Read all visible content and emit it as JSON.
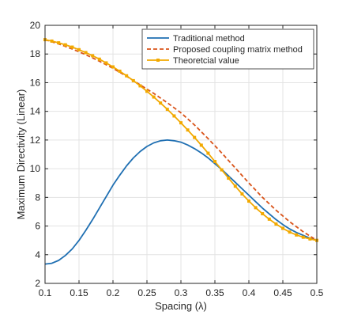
{
  "chart_data": {
    "type": "line",
    "title": "",
    "xlabel": "Spacing (λ)",
    "ylabel": "Maximum Directivity (Linear)",
    "xlim": [
      0.1,
      0.5
    ],
    "ylim": [
      2,
      20
    ],
    "x_ticks": [
      "0.1",
      "0.15",
      "0.2",
      "0.25",
      "0.3",
      "0.35",
      "0.4",
      "0.45",
      "0.5"
    ],
    "y_ticks": [
      "2",
      "4",
      "6",
      "8",
      "10",
      "12",
      "14",
      "16",
      "18",
      "20"
    ],
    "grid": true,
    "legend_position": "top-right",
    "series": [
      {
        "name": "Traditional method",
        "color": "#1f6fb2",
        "style": "solid",
        "x": [
          0.1,
          0.11,
          0.12,
          0.13,
          0.14,
          0.15,
          0.16,
          0.17,
          0.18,
          0.19,
          0.2,
          0.21,
          0.22,
          0.23,
          0.24,
          0.25,
          0.26,
          0.27,
          0.28,
          0.29,
          0.3,
          0.31,
          0.32,
          0.33,
          0.34,
          0.35,
          0.36,
          0.37,
          0.38,
          0.39,
          0.4,
          0.41,
          0.42,
          0.43,
          0.44,
          0.45,
          0.46,
          0.47,
          0.48,
          0.49,
          0.5
        ],
        "y": [
          3.35,
          3.4,
          3.6,
          3.95,
          4.4,
          5.0,
          5.7,
          6.45,
          7.25,
          8.05,
          8.85,
          9.55,
          10.2,
          10.75,
          11.2,
          11.55,
          11.8,
          11.95,
          12.0,
          11.95,
          11.85,
          11.65,
          11.4,
          11.1,
          10.75,
          10.35,
          9.95,
          9.5,
          9.05,
          8.6,
          8.15,
          7.7,
          7.25,
          6.85,
          6.45,
          6.1,
          5.8,
          5.55,
          5.35,
          5.15,
          5.0
        ]
      },
      {
        "name": "Proposed coupling matrix method",
        "color": "#d95319",
        "style": "dashed",
        "x": [
          0.1,
          0.12,
          0.14,
          0.16,
          0.18,
          0.2,
          0.22,
          0.24,
          0.26,
          0.28,
          0.3,
          0.32,
          0.34,
          0.36,
          0.38,
          0.4,
          0.42,
          0.44,
          0.46,
          0.48,
          0.5
        ],
        "y": [
          19.0,
          18.7,
          18.35,
          17.95,
          17.5,
          17.0,
          16.45,
          15.85,
          15.25,
          14.6,
          13.9,
          13.05,
          12.1,
          11.1,
          10.05,
          9.0,
          8.0,
          7.1,
          6.3,
          5.6,
          5.0
        ]
      },
      {
        "name": "Theoretcial value",
        "color": "#f2a900",
        "style": "solid-square-markers",
        "x": [
          0.1,
          0.11,
          0.12,
          0.13,
          0.14,
          0.15,
          0.16,
          0.17,
          0.18,
          0.19,
          0.2,
          0.21,
          0.22,
          0.23,
          0.24,
          0.25,
          0.26,
          0.27,
          0.28,
          0.29,
          0.3,
          0.31,
          0.32,
          0.33,
          0.34,
          0.35,
          0.36,
          0.37,
          0.38,
          0.39,
          0.4,
          0.41,
          0.42,
          0.43,
          0.44,
          0.45,
          0.46,
          0.47,
          0.48,
          0.49,
          0.5
        ],
        "y": [
          19.0,
          18.9,
          18.78,
          18.64,
          18.48,
          18.3,
          18.1,
          17.88,
          17.64,
          17.38,
          17.1,
          16.8,
          16.48,
          16.14,
          15.78,
          15.4,
          15.0,
          14.58,
          14.14,
          13.68,
          13.2,
          12.7,
          12.18,
          11.64,
          11.08,
          10.5,
          9.92,
          9.34,
          8.78,
          8.24,
          7.74,
          7.28,
          6.86,
          6.48,
          6.14,
          5.84,
          5.58,
          5.38,
          5.22,
          5.1,
          5.0
        ]
      }
    ]
  }
}
